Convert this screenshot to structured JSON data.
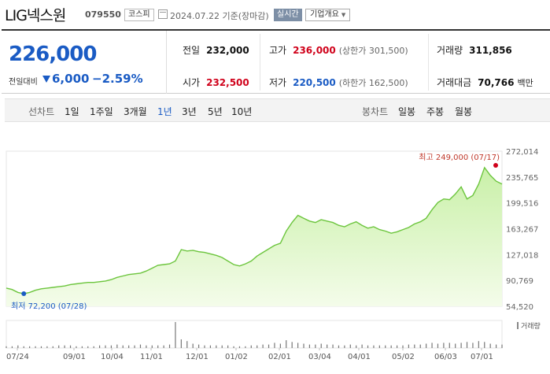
{
  "header": {
    "stock_name": "LIG넥스원",
    "stock_code": "079550",
    "market": "코스피",
    "date_text": "2024.07.22 기준(장마감)",
    "realtime": "실시간",
    "company_info": "기업개요"
  },
  "price": {
    "current": "226,000",
    "change_label": "전일대비",
    "change_amount": "6,000",
    "change_rate": "−2.59%",
    "direction": "down"
  },
  "stats": {
    "prev_close_label": "전일",
    "prev_close": "232,000",
    "high_label": "고가",
    "high": "236,000",
    "upper_limit": "(상한가 301,500)",
    "volume_label": "거래량",
    "volume": "311,856",
    "open_label": "시가",
    "open": "232,500",
    "low_label": "저가",
    "low": "220,500",
    "lower_limit": "(하한가 162,500)",
    "amount_label": "거래대금",
    "amount": "70,766",
    "amount_unit": "백만"
  },
  "tabs": {
    "line_chart_label": "선차트",
    "line_periods": [
      "1일",
      "1주일",
      "3개월",
      "1년",
      "3년",
      "5년",
      "10년"
    ],
    "active_period": "1년",
    "candle_label": "봉차트",
    "candle_periods": [
      "일봉",
      "주봉",
      "월봉"
    ]
  },
  "chart_data": {
    "type": "area",
    "y_ticks": [
      "272,014",
      "235,765",
      "199,516",
      "163,267",
      "127,018",
      "90,769",
      "54,520"
    ],
    "ylim": [
      54520,
      272014
    ],
    "x_ticks": [
      "07/24",
      "09/01",
      "10/04",
      "11/01",
      "12/01",
      "01/02",
      "02/01",
      "03/04",
      "04/01",
      "05/02",
      "06/03",
      "07/01"
    ],
    "max_annotation": "최고 249,000 (07/17)",
    "min_annotation": "최저 72,200 (07/28)",
    "volume_label": "거래량",
    "price_series": [
      80,
      78,
      74,
      72.2,
      74,
      77,
      79,
      80,
      81,
      82,
      83,
      85,
      86,
      87,
      88,
      88,
      89,
      90,
      92,
      95,
      97,
      99,
      100,
      101,
      104,
      108,
      112,
      113,
      114,
      118,
      134,
      132,
      133,
      131,
      130,
      128,
      126,
      123,
      118,
      113,
      111,
      114,
      118,
      125,
      130,
      135,
      140,
      143,
      160,
      172,
      182,
      178,
      174,
      172,
      176,
      174,
      172,
      168,
      166,
      170,
      173,
      168,
      164,
      166,
      162,
      160,
      157,
      159,
      162,
      165,
      170,
      173,
      178,
      190,
      200,
      205,
      204,
      212,
      222,
      205,
      210,
      226,
      249,
      238,
      230,
      226
    ],
    "volume_series": [
      2,
      2,
      3,
      2,
      2,
      2,
      2,
      2,
      2,
      3,
      3,
      3,
      2,
      2,
      2,
      2,
      3,
      3,
      3,
      4,
      3,
      3,
      3,
      4,
      3,
      3,
      3,
      3,
      4,
      30,
      10,
      8,
      5,
      4,
      3,
      3,
      3,
      3,
      3,
      2,
      2,
      2,
      3,
      3,
      4,
      4,
      6,
      5,
      9,
      7,
      6,
      5,
      4,
      4,
      5,
      4,
      4,
      3,
      3,
      4,
      3,
      4,
      3,
      3,
      3,
      3,
      3,
      3,
      3,
      4,
      4,
      4,
      5,
      6,
      5,
      6,
      6,
      5,
      6,
      7,
      6,
      8,
      7,
      5,
      4,
      4
    ]
  },
  "colors": {
    "down": "#1a5bc4",
    "up": "#d0021b",
    "line": "#6cc53d",
    "fill_top": "#c9f0a8",
    "fill_bottom": "#f4fcea"
  }
}
